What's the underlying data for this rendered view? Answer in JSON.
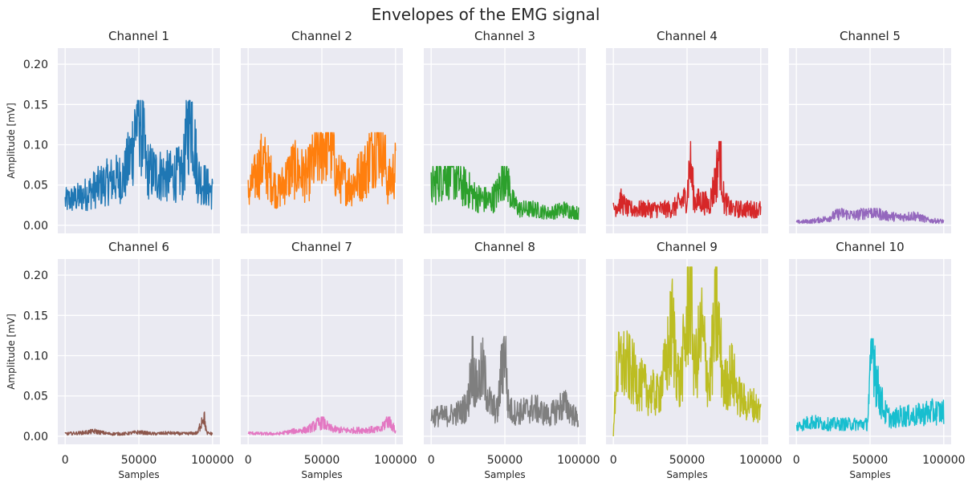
{
  "figure_title": "Envelopes of the EMG signal",
  "chart_data": {
    "type": "line",
    "layout": "2x5 subplot grid, shared x and y axes",
    "title": "Envelopes of the EMG signal",
    "xlabel": "Samples",
    "ylabel": "Amplitude [mV]",
    "xlim": [
      -5000,
      105000
    ],
    "ylim": [
      -0.01,
      0.22
    ],
    "xticks": [
      0,
      50000,
      100000
    ],
    "xtick_labels": [
      "0",
      "50000",
      "100000"
    ],
    "yticks": [
      0.0,
      0.05,
      0.1,
      0.15,
      0.2
    ],
    "ytick_labels": [
      "0.00",
      "0.05",
      "0.10",
      "0.15",
      "0.20"
    ],
    "grid": true,
    "background": "#eaeaf2",
    "panels": [
      {
        "title": "Channel 1",
        "color": "#1f77b4",
        "x": [
          0,
          10000,
          20000,
          30000,
          40000,
          45000,
          50000,
          55000,
          60000,
          70000,
          80000,
          85000,
          90000,
          100000
        ],
        "values": [
          0.03,
          0.035,
          0.045,
          0.055,
          0.06,
          0.09,
          0.155,
          0.07,
          0.065,
          0.06,
          0.065,
          0.152,
          0.06,
          0.04
        ],
        "min": 0.015,
        "max": 0.155
      },
      {
        "title": "Channel 2",
        "color": "#ff7f0e",
        "x": [
          0,
          5000,
          10000,
          15000,
          20000,
          30000,
          40000,
          50000,
          55000,
          60000,
          70000,
          80000,
          85000,
          90000,
          95000,
          100000
        ],
        "values": [
          0.04,
          0.06,
          0.08,
          0.06,
          0.04,
          0.07,
          0.06,
          0.1,
          0.115,
          0.06,
          0.05,
          0.07,
          0.1,
          0.115,
          0.05,
          0.07
        ],
        "min": 0.005,
        "max": 0.115
      },
      {
        "title": "Channel 3",
        "color": "#2ca02c",
        "x": [
          0,
          5000,
          10000,
          15000,
          20000,
          25000,
          30000,
          40000,
          45000,
          50000,
          55000,
          60000,
          70000,
          80000,
          90000,
          100000
        ],
        "values": [
          0.045,
          0.06,
          0.07,
          0.065,
          0.05,
          0.045,
          0.035,
          0.03,
          0.04,
          0.073,
          0.03,
          0.02,
          0.02,
          0.015,
          0.02,
          0.015
        ],
        "min": 0.0,
        "max": 0.073
      },
      {
        "title": "Channel 4",
        "color": "#d62728",
        "x": [
          0,
          5000,
          10000,
          20000,
          30000,
          40000,
          50000,
          52000,
          55000,
          60000,
          65000,
          70000,
          72000,
          75000,
          80000,
          90000,
          100000
        ],
        "values": [
          0.02,
          0.03,
          0.02,
          0.02,
          0.02,
          0.02,
          0.035,
          0.082,
          0.03,
          0.03,
          0.025,
          0.06,
          0.104,
          0.03,
          0.02,
          0.02,
          0.02
        ],
        "min": 0.0,
        "max": 0.104
      },
      {
        "title": "Channel 5",
        "color": "#9467bd",
        "x": [
          0,
          10000,
          20000,
          30000,
          40000,
          50000,
          60000,
          70000,
          80000,
          90000,
          100000
        ],
        "values": [
          0.004,
          0.005,
          0.008,
          0.015,
          0.012,
          0.018,
          0.012,
          0.01,
          0.012,
          0.006,
          0.005
        ],
        "min": 0.0,
        "max": 0.021
      },
      {
        "title": "Channel 6",
        "color": "#8c564b",
        "x": [
          0,
          10000,
          20000,
          30000,
          40000,
          50000,
          60000,
          70000,
          80000,
          90000,
          94000,
          96000,
          100000
        ],
        "values": [
          0.003,
          0.004,
          0.006,
          0.003,
          0.003,
          0.005,
          0.003,
          0.004,
          0.003,
          0.004,
          0.028,
          0.004,
          0.003
        ],
        "min": 0.0,
        "max": 0.03
      },
      {
        "title": "Channel 7",
        "color": "#e377c2",
        "x": [
          0,
          10000,
          20000,
          30000,
          40000,
          50000,
          55000,
          60000,
          70000,
          80000,
          90000,
          95000,
          100000
        ],
        "values": [
          0.004,
          0.003,
          0.003,
          0.006,
          0.008,
          0.018,
          0.01,
          0.008,
          0.007,
          0.008,
          0.008,
          0.022,
          0.006
        ],
        "min": 0.0,
        "max": 0.024
      },
      {
        "title": "Channel 8",
        "color": "#7f7f7f",
        "x": [
          0,
          10000,
          20000,
          25000,
          28000,
          30000,
          35000,
          40000,
          45000,
          50000,
          52000,
          55000,
          60000,
          70000,
          80000,
          90000,
          100000
        ],
        "values": [
          0.025,
          0.025,
          0.03,
          0.04,
          0.1,
          0.06,
          0.08,
          0.04,
          0.03,
          0.124,
          0.04,
          0.03,
          0.03,
          0.035,
          0.025,
          0.04,
          0.02
        ],
        "min": 0.005,
        "max": 0.124
      },
      {
        "title": "Channel 9",
        "color": "#bcbd22",
        "x": [
          0,
          2000,
          5000,
          10000,
          20000,
          30000,
          35000,
          40000,
          45000,
          50000,
          52000,
          55000,
          60000,
          65000,
          70000,
          75000,
          80000,
          85000,
          90000,
          95000,
          100000
        ],
        "values": [
          0.0,
          0.08,
          0.09,
          0.085,
          0.06,
          0.05,
          0.08,
          0.135,
          0.06,
          0.14,
          0.21,
          0.08,
          0.13,
          0.06,
          0.16,
          0.06,
          0.08,
          0.05,
          0.04,
          0.04,
          0.03
        ],
        "min": 0.0,
        "max": 0.21
      },
      {
        "title": "Channel 10",
        "color": "#17becf",
        "x": [
          0,
          10000,
          20000,
          30000,
          40000,
          48000,
          52000,
          55000,
          60000,
          65000,
          70000,
          80000,
          90000,
          100000
        ],
        "values": [
          0.012,
          0.018,
          0.015,
          0.015,
          0.015,
          0.015,
          0.12,
          0.06,
          0.03,
          0.02,
          0.025,
          0.025,
          0.03,
          0.03
        ],
        "min": 0.003,
        "max": 0.121
      }
    ]
  }
}
